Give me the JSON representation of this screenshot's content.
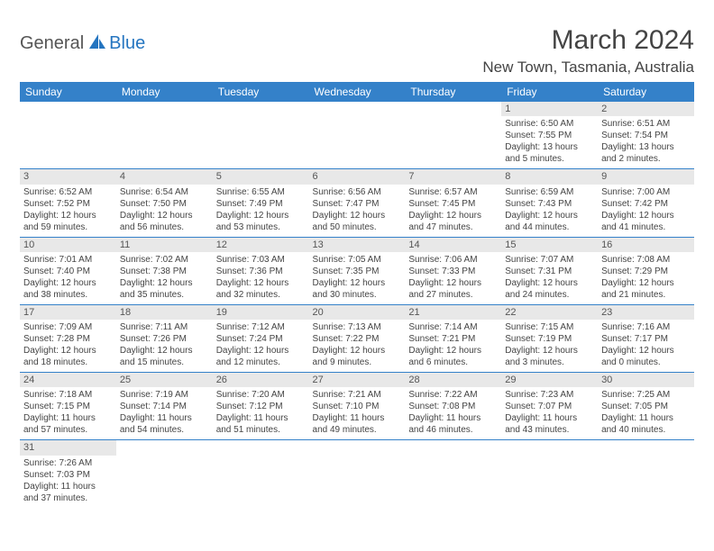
{
  "logo": {
    "general": "General",
    "blue": "Blue"
  },
  "title": "March 2024",
  "location": "New Town, Tasmania, Australia",
  "colors": {
    "header_bg": "#3481c9",
    "header_text": "#ffffff",
    "daynum_bg": "#e8e8e8",
    "border": "#3481c9",
    "text": "#444444",
    "logo_blue": "#2575c0"
  },
  "weekdays": [
    "Sunday",
    "Monday",
    "Tuesday",
    "Wednesday",
    "Thursday",
    "Friday",
    "Saturday"
  ],
  "weeks": [
    [
      null,
      null,
      null,
      null,
      null,
      {
        "n": "1",
        "sr": "Sunrise: 6:50 AM",
        "ss": "Sunset: 7:55 PM",
        "d1": "Daylight: 13 hours",
        "d2": "and 5 minutes."
      },
      {
        "n": "2",
        "sr": "Sunrise: 6:51 AM",
        "ss": "Sunset: 7:54 PM",
        "d1": "Daylight: 13 hours",
        "d2": "and 2 minutes."
      }
    ],
    [
      {
        "n": "3",
        "sr": "Sunrise: 6:52 AM",
        "ss": "Sunset: 7:52 PM",
        "d1": "Daylight: 12 hours",
        "d2": "and 59 minutes."
      },
      {
        "n": "4",
        "sr": "Sunrise: 6:54 AM",
        "ss": "Sunset: 7:50 PM",
        "d1": "Daylight: 12 hours",
        "d2": "and 56 minutes."
      },
      {
        "n": "5",
        "sr": "Sunrise: 6:55 AM",
        "ss": "Sunset: 7:49 PM",
        "d1": "Daylight: 12 hours",
        "d2": "and 53 minutes."
      },
      {
        "n": "6",
        "sr": "Sunrise: 6:56 AM",
        "ss": "Sunset: 7:47 PM",
        "d1": "Daylight: 12 hours",
        "d2": "and 50 minutes."
      },
      {
        "n": "7",
        "sr": "Sunrise: 6:57 AM",
        "ss": "Sunset: 7:45 PM",
        "d1": "Daylight: 12 hours",
        "d2": "and 47 minutes."
      },
      {
        "n": "8",
        "sr": "Sunrise: 6:59 AM",
        "ss": "Sunset: 7:43 PM",
        "d1": "Daylight: 12 hours",
        "d2": "and 44 minutes."
      },
      {
        "n": "9",
        "sr": "Sunrise: 7:00 AM",
        "ss": "Sunset: 7:42 PM",
        "d1": "Daylight: 12 hours",
        "d2": "and 41 minutes."
      }
    ],
    [
      {
        "n": "10",
        "sr": "Sunrise: 7:01 AM",
        "ss": "Sunset: 7:40 PM",
        "d1": "Daylight: 12 hours",
        "d2": "and 38 minutes."
      },
      {
        "n": "11",
        "sr": "Sunrise: 7:02 AM",
        "ss": "Sunset: 7:38 PM",
        "d1": "Daylight: 12 hours",
        "d2": "and 35 minutes."
      },
      {
        "n": "12",
        "sr": "Sunrise: 7:03 AM",
        "ss": "Sunset: 7:36 PM",
        "d1": "Daylight: 12 hours",
        "d2": "and 32 minutes."
      },
      {
        "n": "13",
        "sr": "Sunrise: 7:05 AM",
        "ss": "Sunset: 7:35 PM",
        "d1": "Daylight: 12 hours",
        "d2": "and 30 minutes."
      },
      {
        "n": "14",
        "sr": "Sunrise: 7:06 AM",
        "ss": "Sunset: 7:33 PM",
        "d1": "Daylight: 12 hours",
        "d2": "and 27 minutes."
      },
      {
        "n": "15",
        "sr": "Sunrise: 7:07 AM",
        "ss": "Sunset: 7:31 PM",
        "d1": "Daylight: 12 hours",
        "d2": "and 24 minutes."
      },
      {
        "n": "16",
        "sr": "Sunrise: 7:08 AM",
        "ss": "Sunset: 7:29 PM",
        "d1": "Daylight: 12 hours",
        "d2": "and 21 minutes."
      }
    ],
    [
      {
        "n": "17",
        "sr": "Sunrise: 7:09 AM",
        "ss": "Sunset: 7:28 PM",
        "d1": "Daylight: 12 hours",
        "d2": "and 18 minutes."
      },
      {
        "n": "18",
        "sr": "Sunrise: 7:11 AM",
        "ss": "Sunset: 7:26 PM",
        "d1": "Daylight: 12 hours",
        "d2": "and 15 minutes."
      },
      {
        "n": "19",
        "sr": "Sunrise: 7:12 AM",
        "ss": "Sunset: 7:24 PM",
        "d1": "Daylight: 12 hours",
        "d2": "and 12 minutes."
      },
      {
        "n": "20",
        "sr": "Sunrise: 7:13 AM",
        "ss": "Sunset: 7:22 PM",
        "d1": "Daylight: 12 hours",
        "d2": "and 9 minutes."
      },
      {
        "n": "21",
        "sr": "Sunrise: 7:14 AM",
        "ss": "Sunset: 7:21 PM",
        "d1": "Daylight: 12 hours",
        "d2": "and 6 minutes."
      },
      {
        "n": "22",
        "sr": "Sunrise: 7:15 AM",
        "ss": "Sunset: 7:19 PM",
        "d1": "Daylight: 12 hours",
        "d2": "and 3 minutes."
      },
      {
        "n": "23",
        "sr": "Sunrise: 7:16 AM",
        "ss": "Sunset: 7:17 PM",
        "d1": "Daylight: 12 hours",
        "d2": "and 0 minutes."
      }
    ],
    [
      {
        "n": "24",
        "sr": "Sunrise: 7:18 AM",
        "ss": "Sunset: 7:15 PM",
        "d1": "Daylight: 11 hours",
        "d2": "and 57 minutes."
      },
      {
        "n": "25",
        "sr": "Sunrise: 7:19 AM",
        "ss": "Sunset: 7:14 PM",
        "d1": "Daylight: 11 hours",
        "d2": "and 54 minutes."
      },
      {
        "n": "26",
        "sr": "Sunrise: 7:20 AM",
        "ss": "Sunset: 7:12 PM",
        "d1": "Daylight: 11 hours",
        "d2": "and 51 minutes."
      },
      {
        "n": "27",
        "sr": "Sunrise: 7:21 AM",
        "ss": "Sunset: 7:10 PM",
        "d1": "Daylight: 11 hours",
        "d2": "and 49 minutes."
      },
      {
        "n": "28",
        "sr": "Sunrise: 7:22 AM",
        "ss": "Sunset: 7:08 PM",
        "d1": "Daylight: 11 hours",
        "d2": "and 46 minutes."
      },
      {
        "n": "29",
        "sr": "Sunrise: 7:23 AM",
        "ss": "Sunset: 7:07 PM",
        "d1": "Daylight: 11 hours",
        "d2": "and 43 minutes."
      },
      {
        "n": "30",
        "sr": "Sunrise: 7:25 AM",
        "ss": "Sunset: 7:05 PM",
        "d1": "Daylight: 11 hours",
        "d2": "and 40 minutes."
      }
    ],
    [
      {
        "n": "31",
        "sr": "Sunrise: 7:26 AM",
        "ss": "Sunset: 7:03 PM",
        "d1": "Daylight: 11 hours",
        "d2": "and 37 minutes."
      },
      null,
      null,
      null,
      null,
      null,
      null
    ]
  ]
}
